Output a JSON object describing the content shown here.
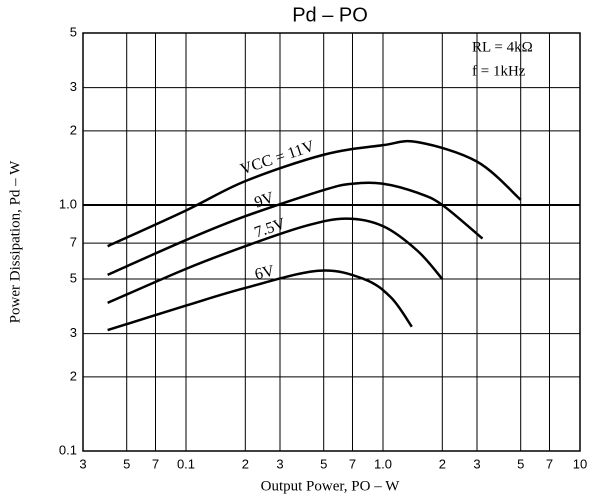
{
  "chart_data": {
    "type": "line",
    "title": "Pd – PO",
    "xlabel": "Output Power, PO – W",
    "ylabel": "Power Dissipation, Pd – W",
    "annotations": [
      "RL = 4kΩ",
      "f = 1kHz"
    ],
    "xscale": "log",
    "yscale": "log",
    "grid": true,
    "color": "#000000",
    "xlim": [
      0.03,
      10
    ],
    "ylim": [
      0.1,
      5
    ],
    "xticks": [
      {
        "value": 0.03,
        "label": "3"
      },
      {
        "value": 0.05,
        "label": "5"
      },
      {
        "value": 0.07,
        "label": "7"
      },
      0.1,
      {
        "value": 0.2,
        "label": "2"
      },
      {
        "value": 0.3,
        "label": "3"
      },
      {
        "value": 0.5,
        "label": "5"
      },
      {
        "value": 0.7,
        "label": "7"
      },
      {
        "value": 1,
        "label": "1.0"
      },
      2,
      3,
      5,
      7,
      10
    ],
    "yticks": [
      0.1,
      {
        "value": 0.2,
        "label": "2"
      },
      {
        "value": 0.3,
        "label": "3"
      },
      {
        "value": 0.5,
        "label": "5"
      },
      {
        "value": 0.7,
        "label": "7"
      },
      {
        "value": 1,
        "label": "1.0"
      },
      2,
      3,
      5
    ],
    "series": [
      {
        "name": "VCC = 11V",
        "x": [
          0.04,
          0.1,
          0.2,
          0.5,
          1.0,
          1.5,
          3,
          5
        ],
        "values": [
          0.68,
          0.95,
          1.25,
          1.6,
          1.75,
          1.8,
          1.5,
          1.05
        ]
      },
      {
        "name": "9V",
        "x": [
          0.04,
          0.1,
          0.2,
          0.5,
          0.7,
          1.0,
          1.5,
          2,
          3.2
        ],
        "values": [
          0.52,
          0.72,
          0.9,
          1.15,
          1.22,
          1.22,
          1.12,
          1.0,
          0.73
        ]
      },
      {
        "name": "7.5V",
        "x": [
          0.04,
          0.1,
          0.2,
          0.4,
          0.65,
          1.0,
          1.5,
          2
        ],
        "values": [
          0.4,
          0.55,
          0.68,
          0.82,
          0.88,
          0.82,
          0.65,
          0.5
        ]
      },
      {
        "name": "6V",
        "x": [
          0.04,
          0.1,
          0.2,
          0.47,
          0.8,
          1.1,
          1.4
        ],
        "values": [
          0.31,
          0.39,
          0.46,
          0.54,
          0.5,
          0.42,
          0.32
        ]
      }
    ]
  }
}
